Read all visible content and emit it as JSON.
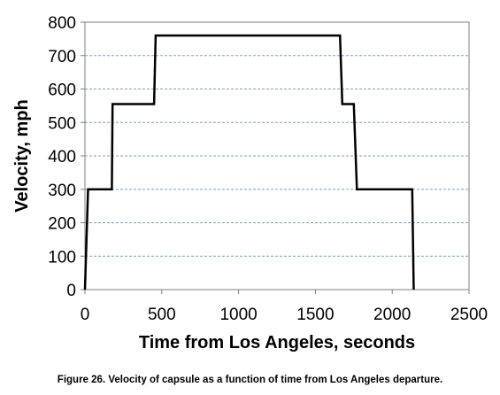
{
  "chart_data": {
    "type": "line",
    "title": "",
    "xlabel": "Time from Los Angeles, seconds",
    "ylabel": "Velocity, mph",
    "xlim": [
      0,
      2500
    ],
    "ylim": [
      0,
      800
    ],
    "xticks": [
      "0",
      "500",
      "1000",
      "1500",
      "2000",
      "2500"
    ],
    "yticks": [
      "0",
      "100",
      "200",
      "300",
      "400",
      "500",
      "600",
      "700",
      "800"
    ],
    "grid": "horizontal dashed",
    "legend": "none",
    "line_color": "#000000",
    "grid_color": "#7f9fc7",
    "series": [
      {
        "x": [
          0,
          20,
          175,
          180,
          450,
          460,
          1660,
          1675,
          1750,
          1770,
          2130,
          2140
        ],
        "y": [
          0,
          300,
          300,
          555,
          555,
          760,
          760,
          555,
          555,
          300,
          300,
          0
        ]
      }
    ]
  },
  "caption": "Figure 26. Velocity of capsule as a function of time from Los Angeles departure."
}
